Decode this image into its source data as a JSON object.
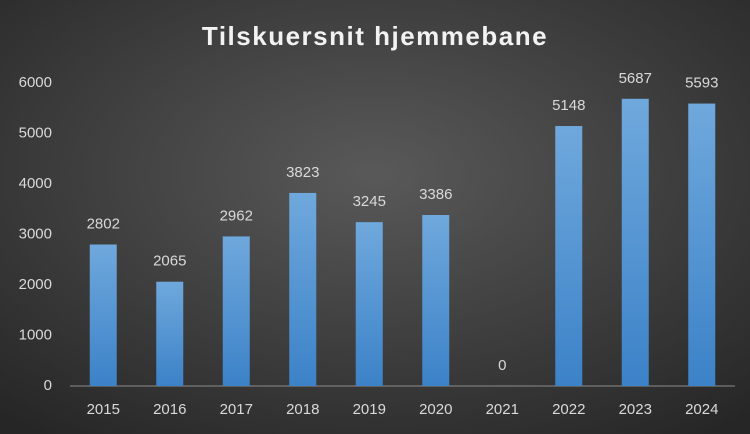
{
  "chart_data": {
    "type": "bar",
    "title": "Tilskuersnit hjemmebane",
    "categories": [
      "2015",
      "2016",
      "2017",
      "2018",
      "2019",
      "2020",
      "2021",
      "2022",
      "2023",
      "2024"
    ],
    "values": [
      2802,
      2065,
      2962,
      3823,
      3245,
      3386,
      0,
      5148,
      5687,
      5593
    ],
    "color": "#5b9bd5",
    "ylim": [
      0,
      6000
    ],
    "yticks": [
      0,
      1000,
      2000,
      3000,
      4000,
      5000,
      6000
    ],
    "grid": false
  }
}
